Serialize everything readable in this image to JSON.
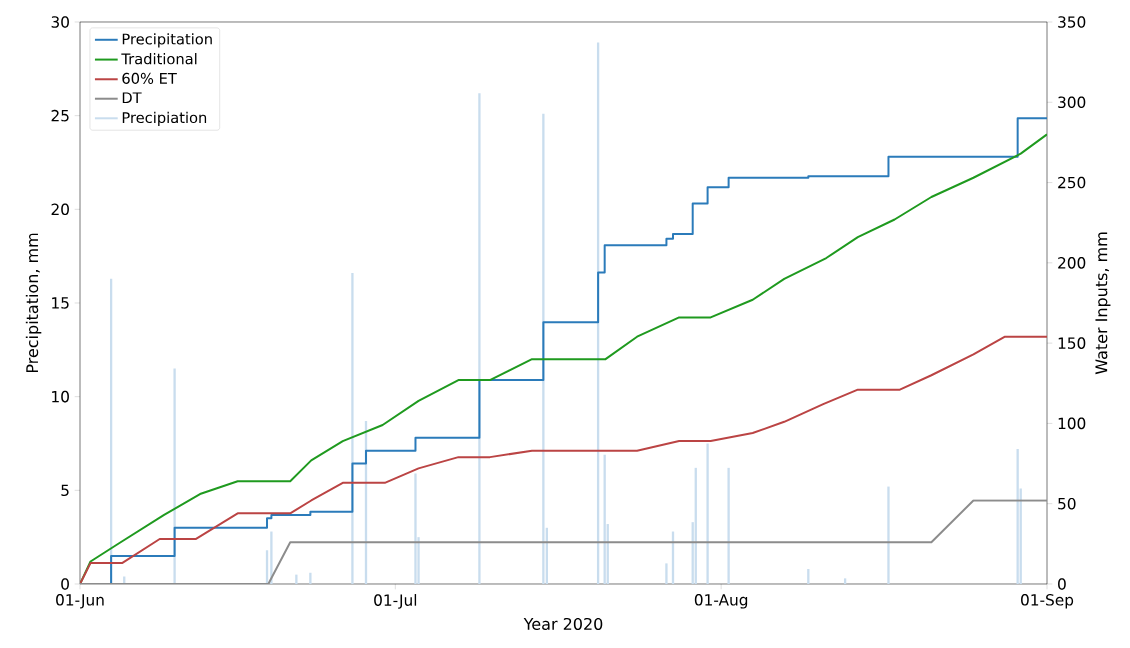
{
  "chart_data": {
    "type": "line",
    "xlabel": "Year 2020",
    "ylabel": "Precipitation, mm",
    "y2label": "Water Inputs, mm",
    "xlim": [
      "2020-06-01",
      "2020-09-01"
    ],
    "xticks": [
      {
        "value": "2020-06-01",
        "label": "01-Jun"
      },
      {
        "value": "2020-07-01",
        "label": "01-Jul"
      },
      {
        "value": "2020-08-01",
        "label": "01-Aug"
      },
      {
        "value": "2020-09-01",
        "label": "01-Sep"
      }
    ],
    "ylim": [
      0,
      30
    ],
    "yticks": [
      0,
      5,
      10,
      15,
      20,
      25,
      30
    ],
    "y2lim": [
      0,
      350
    ],
    "y2ticks": [
      0,
      50,
      100,
      150,
      200,
      250,
      300,
      350
    ],
    "grid": false,
    "legend": "top left",
    "series": [
      {
        "name": "Precipitation",
        "type": "step",
        "axis": "y2",
        "color": "#2b7bba",
        "x": [
          "2020-06-01",
          "2020-06-03T23:00",
          "2020-06-10T00:00",
          "2020-06-18T19:00",
          "2020-06-19T05:00",
          "2020-06-22T22:00",
          "2020-06-26T22:00",
          "2020-06-28T05:00",
          "2020-07-02T22:00",
          "2020-07-09T00:00",
          "2020-07-15T02:00",
          "2020-07-20T07:00",
          "2020-07-20T22:00",
          "2020-07-26T19:00",
          "2020-07-27T10:00",
          "2020-07-29T07:00",
          "2020-07-30T17:00",
          "2020-08-01T17:00",
          "2020-08-09T07:00",
          "2020-08-16T22:00",
          "2020-08-29T05:00",
          "2020-09-01"
        ],
        "values": [
          0,
          17.5,
          35,
          41,
          43,
          45,
          75,
          83,
          91,
          127,
          163,
          194,
          211,
          215,
          218,
          237,
          247,
          253,
          254,
          266,
          290,
          290
        ]
      },
      {
        "name": "Traditional",
        "axis": "y2",
        "color": "#1f9a1f",
        "x": [
          "2020-06-01",
          "2020-06-02",
          "2020-06-04T19:00",
          "2020-06-09",
          "2020-06-12T10:00",
          "2020-06-16",
          "2020-06-21",
          "2020-06-23",
          "2020-06-26",
          "2020-06-29T19:00",
          "2020-07-03T05:00",
          "2020-07-07",
          "2020-07-10",
          "2020-07-14",
          "2020-07-21",
          "2020-07-24",
          "2020-07-28",
          "2020-07-31",
          "2020-08-04",
          "2020-08-07",
          "2020-08-11",
          "2020-08-14",
          "2020-08-17T12:00",
          "2020-08-21",
          "2020-08-25",
          "2020-08-29T12:00",
          "2020-09-01"
        ],
        "values": [
          0,
          14,
          25.7,
          43,
          56,
          64,
          64,
          77,
          89,
          99,
          114,
          127,
          127,
          140,
          140,
          154,
          166,
          166,
          177,
          190,
          203,
          216,
          227,
          241,
          253,
          268,
          280
        ]
      },
      {
        "name": "60% ET",
        "axis": "y2",
        "color": "#bb4444",
        "x": [
          "2020-06-01",
          "2020-06-02",
          "2020-06-05",
          "2020-06-08T14:00",
          "2020-06-12",
          "2020-06-16",
          "2020-06-21",
          "2020-06-23",
          "2020-06-26",
          "2020-06-30",
          "2020-07-03T05:00",
          "2020-07-07",
          "2020-07-10",
          "2020-07-14",
          "2020-07-24",
          "2020-07-28",
          "2020-07-31",
          "2020-08-04",
          "2020-08-07",
          "2020-08-10T17:00",
          "2020-08-14",
          "2020-08-18",
          "2020-08-21",
          "2020-08-25",
          "2020-08-28",
          "2020-09-01"
        ],
        "values": [
          0,
          13,
          13,
          28,
          28,
          44,
          44,
          52,
          63,
          63,
          72,
          79,
          79,
          83,
          83,
          89,
          89,
          94,
          101,
          112,
          121,
          121,
          130,
          143,
          154,
          154
        ]
      },
      {
        "name": "DT",
        "axis": "y2",
        "color": "#8c8c8c",
        "x": [
          "2020-06-01",
          "2020-06-18T22:00",
          "2020-06-21",
          "2020-08-21",
          "2020-08-25",
          "2020-09-01"
        ],
        "values": [
          0,
          0,
          26,
          26,
          52,
          52
        ]
      },
      {
        "name": "Precipiation",
        "type": "bar",
        "axis": "y",
        "color": "#c9ddee",
        "x": [
          "2020-06-03T23:00",
          "2020-06-05T05:00",
          "2020-06-10T00:00",
          "2020-06-18T19:00",
          "2020-06-19T05:00",
          "2020-06-21T14:00",
          "2020-06-22T22:00",
          "2020-06-26T22:00",
          "2020-06-28T05:00",
          "2020-07-02T22:00",
          "2020-07-03T05:00",
          "2020-07-09T00:00",
          "2020-07-15T02:00",
          "2020-07-15T10:00",
          "2020-07-20T07:00",
          "2020-07-20T22:00",
          "2020-07-21T05:00",
          "2020-07-26T19:00",
          "2020-07-27T10:00",
          "2020-07-29T07:00",
          "2020-07-29T14:00",
          "2020-07-30T17:00",
          "2020-08-01T17:00",
          "2020-08-09T07:00",
          "2020-08-12T19:00",
          "2020-08-16T22:00",
          "2020-08-29T05:00",
          "2020-08-29T12:00"
        ],
        "values": [
          16.3,
          0.4,
          11.5,
          1.8,
          2.8,
          0.5,
          0.6,
          16.6,
          8.7,
          5.9,
          2.5,
          26.2,
          25.1,
          3.0,
          28.9,
          6.9,
          3.2,
          1.1,
          2.8,
          3.3,
          6.2,
          7.5,
          6.2,
          0.8,
          0.3,
          5.2,
          7.2,
          5.1
        ]
      }
    ]
  }
}
